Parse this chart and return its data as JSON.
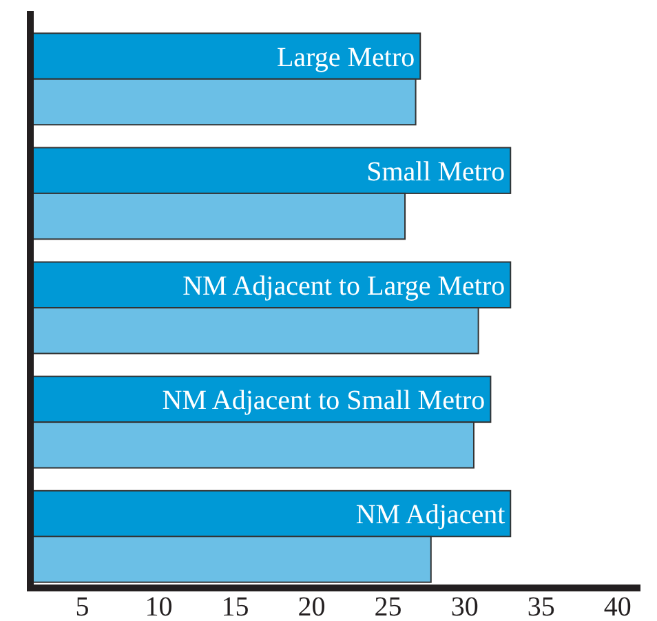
{
  "chart_data": {
    "type": "bar",
    "orientation": "horizontal",
    "categories": [
      "Large Metro",
      "Small Metro",
      "NM Adjacent to Large Metro",
      "NM Adjacent to Small Metro",
      "NM Adjacent"
    ],
    "series": [
      {
        "color": "#0099d6",
        "values": [
          27.1,
          33.0,
          33.0,
          31.7,
          33.0
        ]
      },
      {
        "color": "#6bbfe6",
        "values": [
          26.8,
          26.1,
          30.9,
          30.6,
          27.8
        ]
      }
    ],
    "xlim": [
      1.6,
      41.5
    ],
    "xticks": [
      5,
      10,
      15,
      20,
      25,
      30,
      35,
      40
    ],
    "grid": false
  }
}
